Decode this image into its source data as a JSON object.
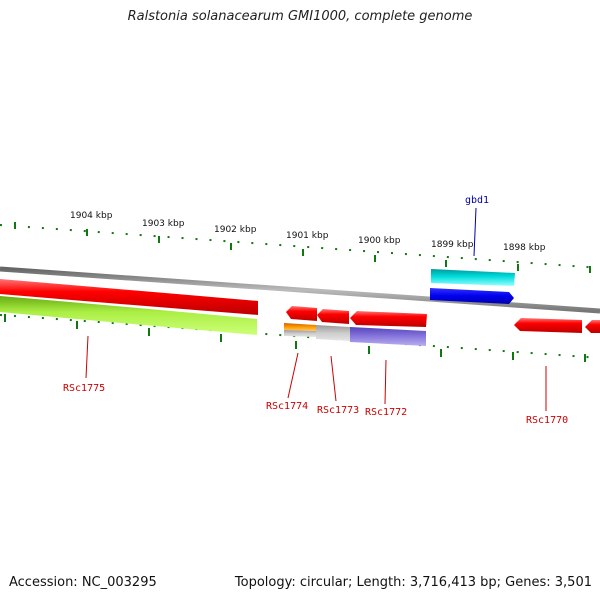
{
  "title": "Ralstonia solanacearum GMI1000, complete genome",
  "footer": {
    "accession": "Accession: NC_003295",
    "summary": "Topology: circular; Length: 3,716,413 bp; Genes: 3,501"
  },
  "scale_labels": [
    "1904 kbp",
    "1903 kbp",
    "1902 kbp",
    "1901 kbp",
    "1900 kbp",
    "1899 kbp",
    "1898 kbp"
  ],
  "genes": [
    {
      "name": "RSc1775",
      "color": "#cc0000"
    },
    {
      "name": "RSc1774",
      "color": "#cc0000"
    },
    {
      "name": "RSc1773",
      "color": "#cc0000"
    },
    {
      "name": "RSc1772",
      "color": "#cc0000"
    },
    {
      "name": "RSc1770",
      "color": "#cc0000"
    },
    {
      "name": "gbd1",
      "color": "#0000aa"
    }
  ],
  "colors": {
    "backbone": "#888888",
    "gene_red": "#ff0000",
    "gene_green": "#99dd33",
    "gene_cyan": "#00dddd",
    "gene_blue": "#0000ee",
    "gene_orange": "#ee8800",
    "gene_gray": "#bbbbbb",
    "gene_purple": "#7766cc",
    "ticks": "#117711"
  }
}
